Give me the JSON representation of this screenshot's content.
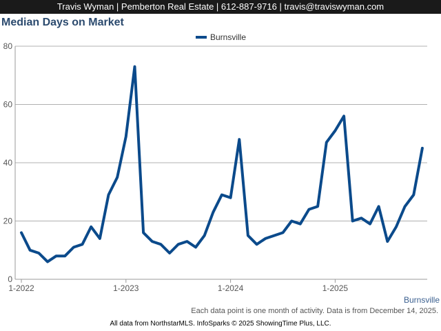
{
  "header": {
    "contact_line": "Travis Wyman | Pemberton Real Estate | 612-887-9716 | travis@traviswyman.com"
  },
  "footer": {
    "note": "Each data point is one month of activity. Data is from December 14, 2025.",
    "credits": "All data from NorthstarMLS. InfoSparks © 2025 ShowingTime Plus, LLC."
  },
  "colors": {
    "series_line": "#0b4a8b",
    "title": "#2b4a6e",
    "grid": "#b0b0b0",
    "header_bg": "#1a1a1a"
  },
  "chart_data": {
    "type": "line",
    "title": "Median Days on Market",
    "xlabel": "Burnsville",
    "ylabel": "",
    "ylim": [
      0,
      80
    ],
    "yticks": [
      0,
      20,
      40,
      60,
      80
    ],
    "xticks": [
      "1-2022",
      "1-2023",
      "1-2024",
      "1-2025"
    ],
    "xtick_index": [
      0,
      12,
      24,
      36
    ],
    "grid": true,
    "legend_position": "top-center",
    "series": [
      {
        "name": "Burnsville",
        "values": [
          16,
          10,
          9,
          6,
          8,
          8,
          11,
          12,
          18,
          14,
          29,
          35,
          49,
          73,
          16,
          13,
          12,
          9,
          12,
          13,
          11,
          15,
          23,
          29,
          28,
          48,
          15,
          12,
          14,
          15,
          16,
          20,
          19,
          24,
          25,
          47,
          51,
          56,
          20,
          21,
          19,
          25,
          13,
          18,
          25,
          29,
          45
        ]
      }
    ]
  }
}
